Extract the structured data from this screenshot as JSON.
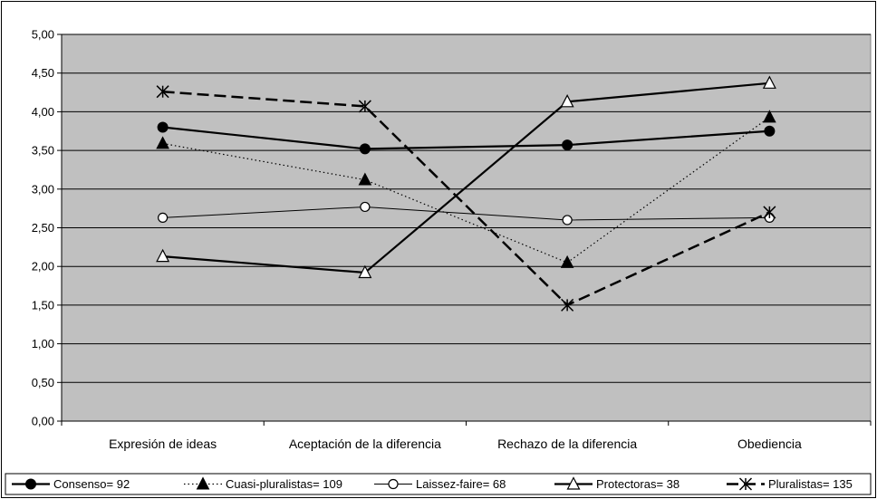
{
  "chart_data": {
    "type": "line",
    "categories": [
      "Expresión de ideas",
      "Aceptación de la diferencia",
      "Rechazo de la diferencia",
      "Obediencia"
    ],
    "ylim": [
      0,
      5
    ],
    "ytick_step": 0.5,
    "ytick_labels": [
      "0,00",
      "0,50",
      "1,00",
      "1,50",
      "2,00",
      "2,50",
      "3,00",
      "3,50",
      "4,00",
      "4,50",
      "5,00"
    ],
    "grid": true,
    "legend_position": "bottom",
    "plot_background": "#c0c0c0",
    "series": [
      {
        "name": "Consenso= 92",
        "values": [
          3.8,
          3.52,
          3.57,
          3.75
        ],
        "line": "solid-thick",
        "marker": "filled-circle",
        "color": "#000000"
      },
      {
        "name": "Cuasi-pluralistas= 109",
        "values": [
          3.59,
          3.12,
          2.05,
          3.93
        ],
        "line": "dotted",
        "marker": "filled-triangle",
        "color": "#000000"
      },
      {
        "name": "Laissez-faire= 68",
        "values": [
          2.63,
          2.77,
          2.6,
          2.63
        ],
        "line": "solid-thin",
        "marker": "open-circle",
        "color": "#000000"
      },
      {
        "name": "Protectoras= 38",
        "values": [
          2.13,
          1.92,
          4.13,
          4.37
        ],
        "line": "solid-thick",
        "marker": "open-triangle",
        "color": "#000000"
      },
      {
        "name": "Pluralistas= 135",
        "values": [
          4.26,
          4.07,
          1.5,
          2.7
        ],
        "line": "dashed-thick",
        "marker": "asterisk",
        "color": "#000000"
      }
    ]
  }
}
